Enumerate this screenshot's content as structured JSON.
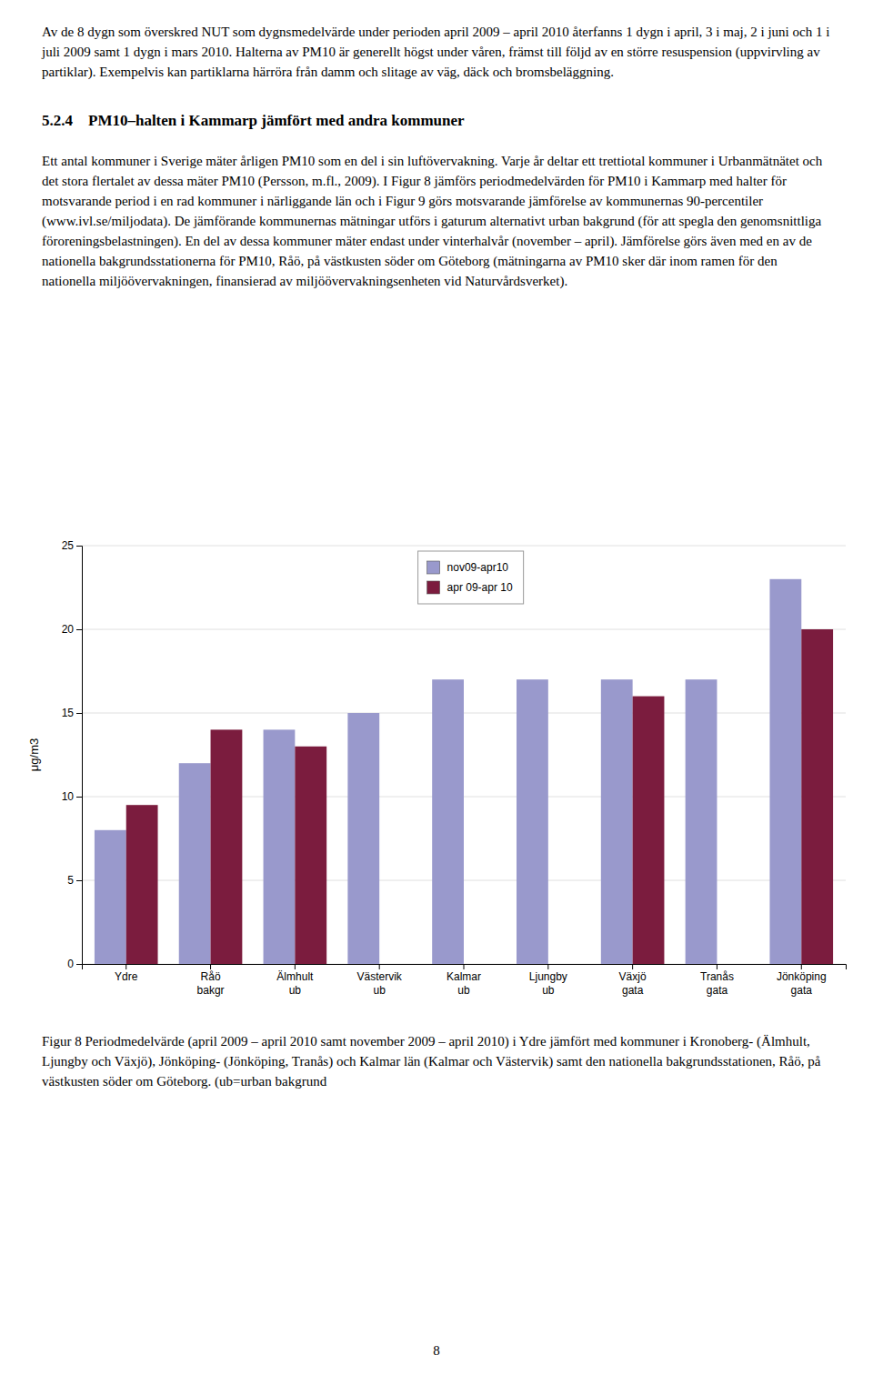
{
  "chart_data": {
    "type": "bar",
    "title": "Figur 8 Periodmedelvärde (april 2009 – april 2010 samt november 2009 – april 2010) i Ydre jämfört med kommuner i Kronoberg- (Älmhult, Ljungby och Växjö), Jönköping- (Jönköping, Tranås) och Kalmar län (Kalmar och Västervik) samt den nationella bakgrundsstationen, Råö, på västkusten söder om Göteborg. (ub=urban bakgrund",
    "annotations": [
      "Av de 8 dygn som överskred NUT som dygnsmedelvärde under perioden april 2009 – april 2010 återfanns 1 dygn i april, 3 i maj, 2 i juni och 1 i juli 2009 samt 1 dygn i mars 2010. Halterna av PM10 är generellt högst under våren, främst till följd av en större resuspension (uppvirvling av partiklar). Exempelvis kan partiklarna härröra från damm och slitage av väg, däck och bromsbeläggning.",
      "5.2.4 PM10–halten i Kammarp jämfört med andra kommuner",
      "Ett antal kommuner i Sverige mäter årligen PM10 som en del i sin luftövervakning. Varje år deltar ett trettiotal kommuner i Urbanmätnätet och det stora flertalet av dessa mäter PM10 (Persson, m.fl., 2009). I Figur 8 jämförs periodmedelvärden för PM10 i Kammarp med halter för motsvarande period i en rad kommuner i närliggande län och i Figur 9 görs motsvarande jämförelse av kommunernas 90-percentiler (www.ivl.se/miljodata). De jämförande kommunernas mätningar utförs i gaturum alternativt urban bakgrund (för att spegla den genomsnittliga föroreningsbelastningen). En del av dessa kommuner mäter endast under vinterhalvår (november – april). Jämförelse görs även med en av de nationella bakgrundsstationerna för PM10, Råö, på västkusten söder om Göteborg (mätningarna av PM10 sker där inom ramen för den nationella miljöövervakningen, finansierad av miljöövervakningsenheten vid Naturvårdsverket).",
      "8"
    ],
    "categories": [
      "Ydre",
      "Råö\nbakgr",
      "Älmhult\nub",
      "Västervik\nub",
      "Kalmar\nub",
      "Ljungby\nub",
      "Växjö\ngata",
      "Tranås\ngata",
      "Jönköping\ngata"
    ],
    "series": [
      {
        "name": "nov09-apr10",
        "color": "#9999CC",
        "values": [
          8.0,
          12.0,
          14.0,
          15.0,
          17.0,
          17.0,
          17.0,
          17.0,
          23.0
        ]
      },
      {
        "name": "apr 09-apr 10",
        "color": "#7B1C3E",
        "values": [
          9.5,
          14.0,
          13.0,
          null,
          null,
          null,
          16.0,
          null,
          20.0
        ]
      }
    ],
    "y_label": "μg/m3",
    "ylim": [
      0,
      25
    ],
    "yticks": [
      0,
      5,
      10,
      15,
      20,
      25
    ],
    "grid": true,
    "legend": "upper center"
  }
}
